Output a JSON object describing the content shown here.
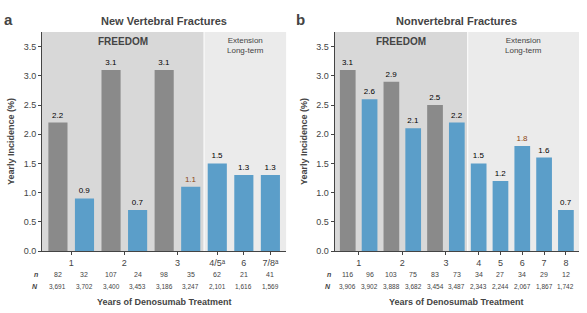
{
  "chart_data": [
    {
      "type": "bar",
      "panel_label": "a",
      "title": "New Vertebral Fractures",
      "xlabel": "Years of Denosumab Treatment",
      "ylabel": "Yearly Incidence (%)",
      "categories": [
        "1",
        "2",
        "3",
        "4/5ᵃ",
        "6",
        "7/8ᵃ"
      ],
      "series": [
        {
          "color": "#8a8a8a",
          "values": [
            2.2,
            3.1,
            3.1,
            null,
            null,
            null
          ],
          "value_label_colors": [
            "#000000",
            "#000000",
            "#000000",
            null,
            null,
            null
          ],
          "n": [
            82,
            107,
            98,
            null,
            null,
            null
          ],
          "N": [
            3691,
            3400,
            3186,
            null,
            null,
            null
          ],
          "N_labels": [
            "3,691",
            "3,400",
            "3,186",
            null,
            null,
            null
          ]
        },
        {
          "color": "#5b9ec9",
          "values": [
            0.9,
            0.7,
            1.1,
            1.5,
            1.3,
            1.3
          ],
          "value_label_colors": [
            "#000000",
            "#000000",
            "#8B4513",
            "#000000",
            "#000000",
            "#000000"
          ],
          "n": [
            32,
            24,
            35,
            62,
            21,
            41
          ],
          "N": [
            3702,
            3453,
            3247,
            2101,
            1616,
            1569
          ],
          "N_labels": [
            "3,702",
            "3,453",
            "3,247",
            "2,101",
            "1,616",
            "1,569"
          ]
        }
      ],
      "n_label": "n",
      "N_label": "N",
      "annotations": [
        {
          "text": "FREEDOM",
          "from": "1",
          "to": "3",
          "color": "#d8d8d8"
        },
        {
          "text": "Extension\nLong-term",
          "from": "4/5ᵃ",
          "to": "7/8ᵃ",
          "color": "#ebebeb"
        }
      ],
      "ylim": [
        0,
        3.75
      ],
      "yticks": [
        {
          "value": 0,
          "label": "0.0"
        },
        0.5,
        {
          "value": 1,
          "label": "1.0"
        },
        1.5,
        {
          "value": 2,
          "label": "2.0"
        },
        2.5,
        {
          "value": 3,
          "label": "3.0"
        },
        3.5
      ],
      "data_labels": true,
      "grid": false
    },
    {
      "type": "bar",
      "panel_label": "b",
      "title": "Nonvertebral Fractures",
      "xlabel": "Years of Denosumab Treatment",
      "ylabel": "Yearly Incidence (%)",
      "categories": [
        "1",
        "2",
        "3",
        "4",
        "5",
        "6",
        "7",
        "8"
      ],
      "series": [
        {
          "color": "#8a8a8a",
          "values": [
            3.1,
            2.9,
            2.5,
            null,
            null,
            null,
            null,
            null
          ],
          "value_label_colors": [
            "#000000",
            "#000000",
            "#000000",
            null,
            null,
            null,
            null,
            null
          ],
          "n": [
            116,
            103,
            83,
            null,
            null,
            null,
            null,
            null
          ],
          "N": [
            3906,
            3888,
            3454,
            null,
            null,
            null,
            null,
            null
          ],
          "N_labels": [
            "3,906",
            "3,888",
            "3,454",
            null,
            null,
            null,
            null,
            null
          ]
        },
        {
          "color": "#5b9ec9",
          "values": [
            2.6,
            2.1,
            2.2,
            1.5,
            1.2,
            1.8,
            1.6,
            0.7
          ],
          "value_label_colors": [
            "#000000",
            "#000000",
            "#000000",
            "#000000",
            "#000000",
            "#8B4513",
            "#000000",
            "#000000"
          ],
          "n": [
            96,
            75,
            73,
            34,
            27,
            34,
            29,
            12
          ],
          "N": [
            3902,
            3682,
            3487,
            2343,
            2244,
            2067,
            1867,
            1742
          ],
          "N_labels": [
            "3,902",
            "3,682",
            "3,487",
            "2,343",
            "2,244",
            "2,067",
            "1,867",
            "1,742"
          ]
        }
      ],
      "n_label": "n",
      "N_label": "N",
      "annotations": [
        {
          "text": "FREEDOM",
          "from": "1",
          "to": "3",
          "color": "#d8d8d8"
        },
        {
          "text": "Extension\nLong-term",
          "from": "4",
          "to": "8",
          "color": "#ebebeb"
        }
      ],
      "ylim": [
        0,
        3.75
      ],
      "yticks": [
        {
          "value": 0,
          "label": "0.0"
        },
        0.5,
        {
          "value": 1,
          "label": "1.0"
        },
        1.5,
        {
          "value": 2,
          "label": "2.0"
        },
        2.5,
        {
          "value": 3,
          "label": "3.0"
        },
        3.5
      ],
      "data_labels": true,
      "grid": false
    }
  ]
}
